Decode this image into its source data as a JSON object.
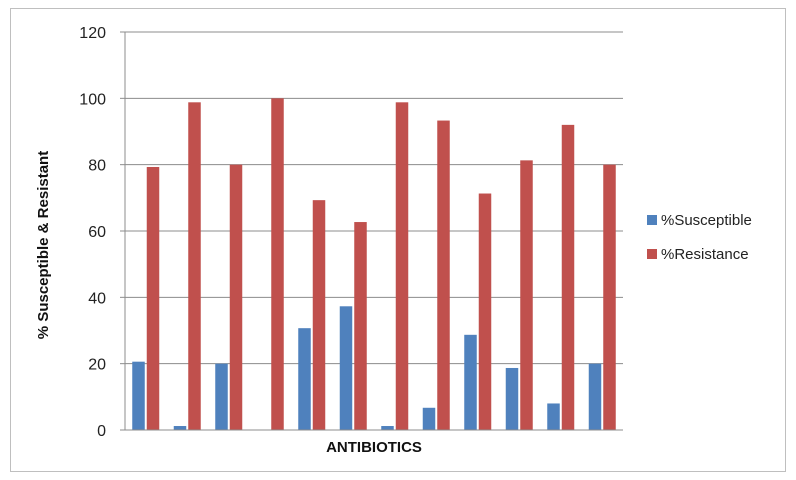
{
  "chart_data": {
    "type": "bar",
    "title": "",
    "xlabel": "ANTIBIOTICS",
    "ylabel": "% Susceptible & Resistant",
    "ylim": [
      0,
      120
    ],
    "yticks": [
      0,
      20,
      40,
      60,
      80,
      100,
      120
    ],
    "grid": true,
    "legend": "right",
    "categories": [
      "",
      "",
      "",
      "",
      "",
      "",
      "",
      "",
      "",
      "",
      "",
      ""
    ],
    "series": [
      {
        "name": "%Susceptible",
        "color": "#4f81bd",
        "values": [
          20.6,
          1.2,
          20,
          0,
          30.7,
          37.3,
          1.2,
          6.7,
          28.7,
          18.7,
          8,
          20
        ]
      },
      {
        "name": "%Resistance",
        "color": "#c0504d",
        "values": [
          79.3,
          98.8,
          80,
          100,
          69.3,
          62.7,
          98.8,
          93.3,
          71.3,
          81.3,
          92,
          80
        ]
      }
    ]
  }
}
